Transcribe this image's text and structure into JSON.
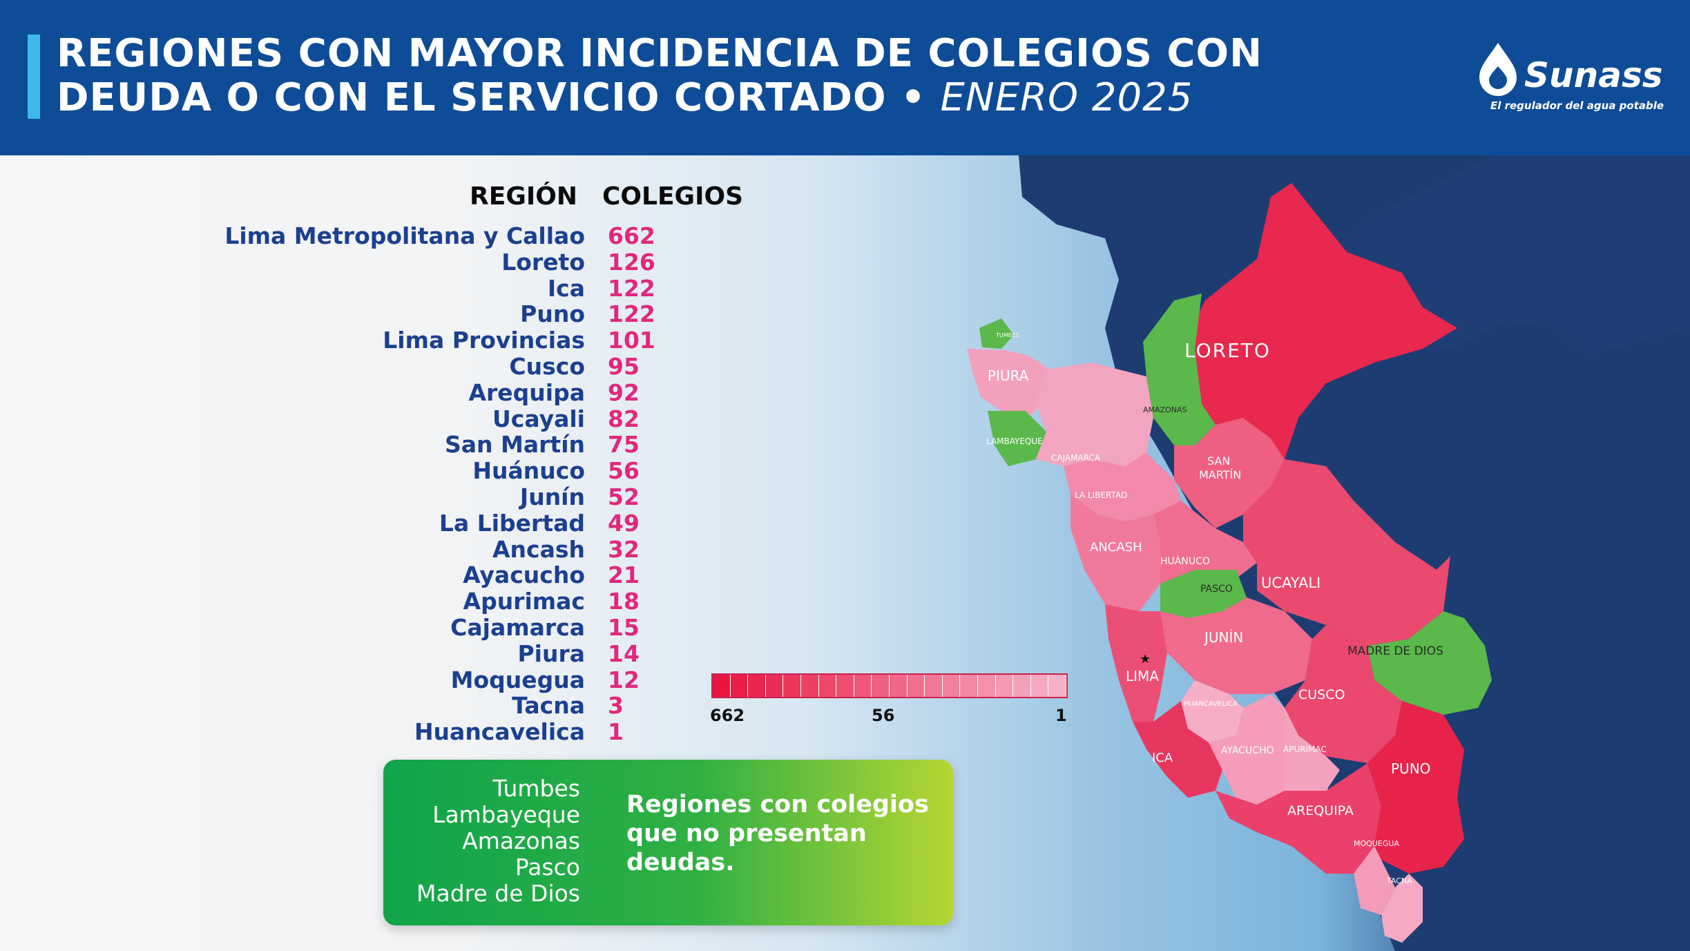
{
  "header": {
    "title_line1": "REGIONES CON MAYOR INCIDENCIA DE COLEGIOS CON",
    "title_line2": "DEUDA O CON EL SERVICIO CORTADO •",
    "period": "ENERO 2025"
  },
  "logo": {
    "name": "Sunass",
    "tagline": "El regulador del agua potable"
  },
  "table": {
    "header_region": "REGIÓN",
    "header_colegios": "COLEGIOS",
    "rows": [
      {
        "region": "Lima Metropolitana y Callao",
        "colegios": "662"
      },
      {
        "region": "Loreto",
        "colegios": "126"
      },
      {
        "region": "Ica",
        "colegios": "122"
      },
      {
        "region": "Puno",
        "colegios": "122"
      },
      {
        "region": "Lima Provincias",
        "colegios": "101"
      },
      {
        "region": "Cusco",
        "colegios": "95"
      },
      {
        "region": "Arequipa",
        "colegios": "92"
      },
      {
        "region": "Ucayali",
        "colegios": "82"
      },
      {
        "region": "San Martín",
        "colegios": "75"
      },
      {
        "region": "Huánuco",
        "colegios": "56"
      },
      {
        "region": "Junín",
        "colegios": "52"
      },
      {
        "region": "La Libertad",
        "colegios": "49"
      },
      {
        "region": "Ancash",
        "colegios": "32"
      },
      {
        "region": "Ayacucho",
        "colegios": "21"
      },
      {
        "region": "Apurimac",
        "colegios": "18"
      },
      {
        "region": "Cajamarca",
        "colegios": "15"
      },
      {
        "region": "Piura",
        "colegios": "14"
      },
      {
        "region": "Moquegua",
        "colegios": "12"
      },
      {
        "region": "Tacna",
        "colegios": "3"
      },
      {
        "region": "Huancavelica",
        "colegios": "1"
      }
    ]
  },
  "legend": {
    "max_label": "662",
    "mid_label": "56",
    "min_label": "1",
    "color_max": "#e8163f",
    "color_min": "#f7b0c8"
  },
  "no_debt_box": {
    "regions": [
      "Tumbes",
      "Lambayeque",
      "Amazonas",
      "Pasco",
      "Madre de Dios"
    ],
    "text": "Regiones con colegios que no presentan deudas.",
    "color": "#2fb043"
  },
  "map": {
    "labels": {
      "tumbes": "TUMBES",
      "piura": "PIURA",
      "lambayeque": "LAMBAYEQUE",
      "cajamarca": "CAJAMARCA",
      "amazonas": "AMAZONAS",
      "loreto": "LORETO",
      "san_martin_1": "SAN",
      "san_martin_2": "MARTÍN",
      "la_libertad": "LA LIBERTAD",
      "ancash": "ANCASH",
      "huanuco": "HUÁNUCO",
      "pasco": "PASCO",
      "ucayali": "UCAYALI",
      "junin": "JUNÍN",
      "lima": "LIMA",
      "madre_de_dios": "MADRE DE DIOS",
      "cusco": "CUSCO",
      "huancavelica": "HUANCAVELICA",
      "ayacucho": "AYACUCHO",
      "apurimac": "APURÍMAC",
      "ica": "ICA",
      "puno": "PUNO",
      "arequipa": "AREQUIPA",
      "moquegua": "MOQUEGUA",
      "tacna": "TACNA"
    }
  }
}
